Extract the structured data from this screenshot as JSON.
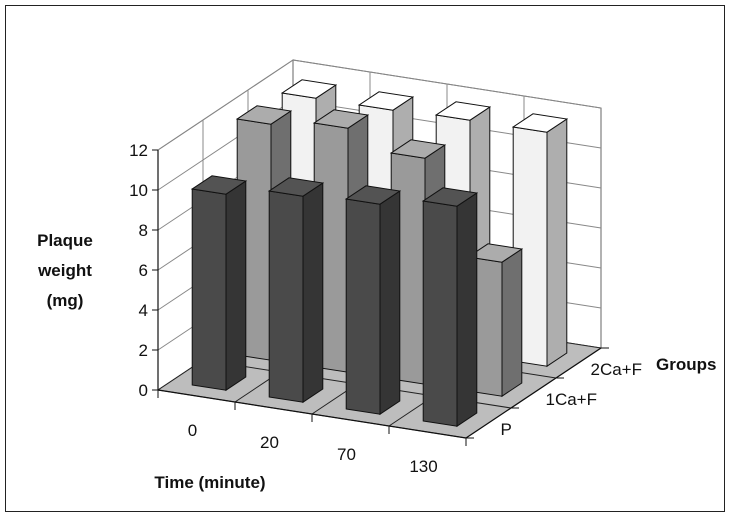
{
  "chart_data": {
    "type": "bar",
    "subtype": "3d-clustered-columns",
    "categories": [
      "0",
      "20",
      "70",
      "130"
    ],
    "series": [
      {
        "name": "P",
        "values": [
          9.8,
          10.3,
          10.5,
          11.0
        ],
        "color": "#4a4a4a"
      },
      {
        "name": "1Ca+F",
        "values": [
          11.8,
          12.2,
          11.3,
          6.7
        ],
        "color": "#9a9a9a"
      },
      {
        "name": "2Ca+F",
        "values": [
          11.6,
          11.6,
          11.7,
          11.7
        ],
        "color": "#f2f2f2"
      }
    ],
    "ylabel_lines": [
      "Plaque",
      "weight",
      "(mg)"
    ],
    "xlabel": "Time (minute)",
    "zlabel": "Groups",
    "ylim": [
      0,
      12
    ],
    "yticks": [
      "0",
      "2",
      "4",
      "6",
      "8",
      "10",
      "12"
    ],
    "grid": true
  }
}
